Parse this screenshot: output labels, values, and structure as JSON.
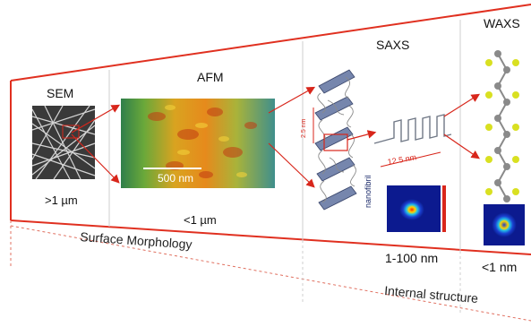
{
  "panels": {
    "sem": {
      "title": "SEM",
      "scale": ">1 µm"
    },
    "afm": {
      "title": "AFM",
      "scale": "<1 µm",
      "scalebar": "500 nm"
    },
    "saxs": {
      "title": "SAXS",
      "scale": "1-100 nm",
      "dim_long": "12.5 nm",
      "dim_short": "2.5 nm",
      "fibril": "nanofibril"
    },
    "waxs": {
      "title": "WAXS",
      "scale": "<1 nm"
    }
  },
  "categories": {
    "surface": "Surface Morphology",
    "internal": "Internal structure"
  },
  "colors": {
    "frame": "#e03020",
    "arrow": "#d8261b",
    "crystal": "#6f7fa6",
    "atom_yellow": "#d9e021",
    "atom_grey": "#8a8a8a"
  }
}
